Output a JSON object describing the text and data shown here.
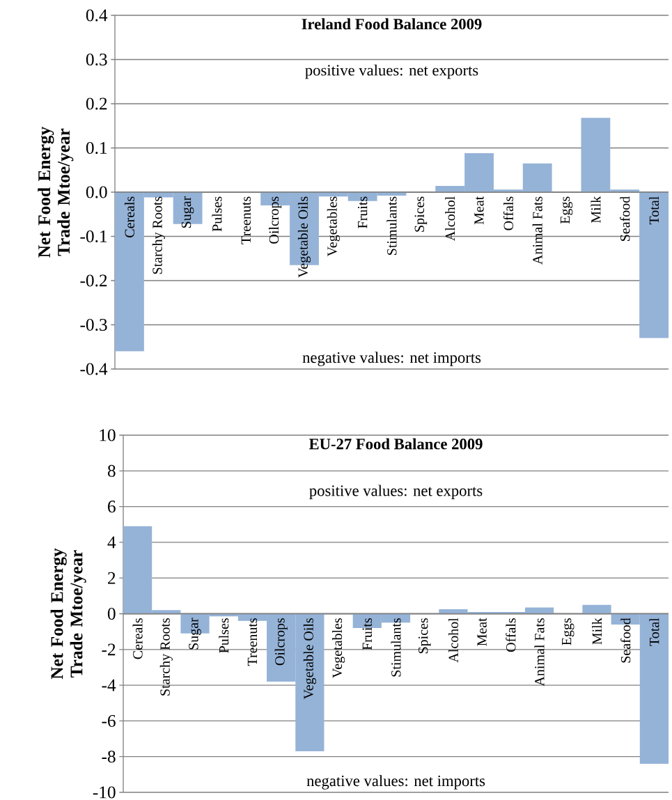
{
  "chart_data": [
    {
      "type": "bar",
      "title": "Ireland Food Balance 2009",
      "ylabel": "Net Food Energy Trade Mtoe/year",
      "categories": [
        "Cereals",
        "Starchy Roots",
        "Sugar",
        "Pulses",
        "Treenuts",
        "Oilcrops",
        "Vegetable Oils",
        "Vegetables",
        "Fruits",
        "Stimulants",
        "Spices",
        "Alcohol",
        "Meat",
        "Offals",
        "Animal Fats",
        "Eggs",
        "Milk",
        "Seafood",
        "Total"
      ],
      "values": [
        -0.36,
        -0.012,
        -0.072,
        0,
        0,
        -0.03,
        -0.165,
        -0.01,
        -0.02,
        -0.008,
        0,
        0.014,
        0.088,
        0.006,
        0.065,
        0,
        0.168,
        0.006,
        -0.33
      ],
      "color": "#95b3d7",
      "ylim": [
        -0.4,
        0.4
      ],
      "yticks": [
        -0.4,
        -0.3,
        -0.2,
        -0.1,
        {
          "value": 0,
          "label": "0.0"
        },
        0.1,
        0.2,
        0.3,
        0.4
      ],
      "grid": "y",
      "annotations": [
        "positive values: net exports",
        "negative values: net imports"
      ]
    },
    {
      "type": "bar",
      "title": "EU-27 Food Balance 2009",
      "ylabel": "Net Food Energy Trade Mtoe/year",
      "categories": [
        "Cereals",
        "Starchy Roots",
        "Sugar",
        "Pulses",
        "Treenuts",
        "Oilcrops",
        "Vegetable Oils",
        "Vegetables",
        "Fruits",
        "Stimulants",
        "Spices",
        "Alcohol",
        "Meat",
        "Offals",
        "Animal Fats",
        "Eggs",
        "Milk",
        "Seafood",
        "Total"
      ],
      "values": [
        4.9,
        0.2,
        -1.1,
        -0.15,
        -0.4,
        -3.8,
        -7.7,
        0,
        -0.8,
        -0.5,
        0,
        0.25,
        0.1,
        0.1,
        0.35,
        0,
        0.5,
        -0.6,
        -8.4
      ],
      "color": "#95b3d7",
      "ylim": [
        -10,
        10
      ],
      "yticks": [
        -10,
        -8,
        -6,
        -4,
        -2,
        0,
        2,
        4,
        6,
        8,
        10
      ],
      "grid": "y",
      "annotations": [
        "positive values: net exports",
        "negative values: net imports"
      ]
    }
  ]
}
